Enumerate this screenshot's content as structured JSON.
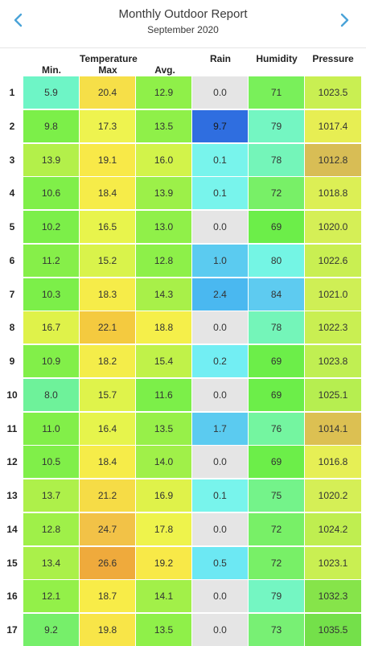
{
  "header": {
    "title": "Monthly Outdoor Report",
    "subtitle": "September 2020",
    "prev_icon": "chevron-left-icon",
    "next_icon": "chevron-right-icon",
    "accent_color": "#4aa3d8"
  },
  "columns": {
    "temperature_group": "Temperature",
    "min": "Min.",
    "max": "Max",
    "avg": "Avg.",
    "rain": "Rain",
    "humidity": "Humidity",
    "pressure": "Pressure"
  },
  "rows": [
    {
      "day": "1",
      "min": "5.9",
      "max": "20.4",
      "avg": "12.9",
      "rain": "0.0",
      "humidity": "71",
      "pressure": "1023.5",
      "colors": {
        "min": "#6ef5c6",
        "max": "#f6df48",
        "avg": "#8ff049",
        "rain": "#e5e5e5",
        "humidity": "#79f05a",
        "pressure": "#c9ef52"
      }
    },
    {
      "day": "2",
      "min": "9.8",
      "max": "17.3",
      "avg": "13.5",
      "rain": "9.7",
      "humidity": "79",
      "pressure": "1017.4",
      "colors": {
        "min": "#7cef49",
        "max": "#eef34f",
        "avg": "#8ff049",
        "rain": "#2f6ee0",
        "humidity": "#74f6c2",
        "pressure": "#e7ee53"
      }
    },
    {
      "day": "3",
      "min": "13.9",
      "max": "19.1",
      "avg": "16.0",
      "rain": "0.1",
      "humidity": "78",
      "pressure": "1012.8",
      "colors": {
        "min": "#b3f04a",
        "max": "#f8e948",
        "avg": "#d2f34a",
        "rain": "#78f4ec",
        "humidity": "#74f5b9",
        "pressure": "#d8bd55"
      }
    },
    {
      "day": "4",
      "min": "10.6",
      "max": "18.4",
      "avg": "13.9",
      "rain": "0.1",
      "humidity": "72",
      "pressure": "1018.8",
      "colors": {
        "min": "#80ef49",
        "max": "#f6ec49",
        "avg": "#9cf049",
        "rain": "#78f4ec",
        "humidity": "#78f067",
        "pressure": "#dcef55"
      }
    },
    {
      "day": "5",
      "min": "10.2",
      "max": "16.5",
      "avg": "13.0",
      "rain": "0.0",
      "humidity": "69",
      "pressure": "1020.0",
      "colors": {
        "min": "#7cef49",
        "max": "#e8f44c",
        "avg": "#90f049",
        "rain": "#e5e5e5",
        "humidity": "#6cee49",
        "pressure": "#d5ef56"
      }
    },
    {
      "day": "6",
      "min": "11.2",
      "max": "15.2",
      "avg": "12.8",
      "rain": "1.0",
      "humidity": "80",
      "pressure": "1022.6",
      "colors": {
        "min": "#86ef49",
        "max": "#d9f34b",
        "avg": "#8df049",
        "rain": "#5bcbf0",
        "humidity": "#74f5e4",
        "pressure": "#c9ef52"
      }
    },
    {
      "day": "7",
      "min": "10.3",
      "max": "18.3",
      "avg": "14.3",
      "rain": "2.4",
      "humidity": "84",
      "pressure": "1021.0",
      "colors": {
        "min": "#7cef49",
        "max": "#f6ec49",
        "avg": "#a8f049",
        "rain": "#4ab8f0",
        "humidity": "#5ecbf0",
        "pressure": "#cfef55"
      }
    },
    {
      "day": "8",
      "min": "16.7",
      "max": "22.1",
      "avg": "18.8",
      "rain": "0.0",
      "humidity": "78",
      "pressure": "1022.3",
      "colors": {
        "min": "#dff24a",
        "max": "#f4ca3f",
        "avg": "#f5ef4a",
        "rain": "#e5e5e5",
        "humidity": "#74f5b9",
        "pressure": "#c9ef52"
      }
    },
    {
      "day": "9",
      "min": "10.9",
      "max": "18.2",
      "avg": "15.4",
      "rain": "0.2",
      "humidity": "69",
      "pressure": "1023.8",
      "colors": {
        "min": "#82ef49",
        "max": "#f4ed4a",
        "avg": "#c0f249",
        "rain": "#72eef3",
        "humidity": "#6cee49",
        "pressure": "#c0ef52"
      }
    },
    {
      "day": "10",
      "min": "8.0",
      "max": "15.7",
      "avg": "11.6",
      "rain": "0.0",
      "humidity": "69",
      "pressure": "1025.1",
      "colors": {
        "min": "#6ef29a",
        "max": "#dff34b",
        "avg": "#7cef49",
        "rain": "#e5e5e5",
        "humidity": "#6cee49",
        "pressure": "#b6ee50"
      }
    },
    {
      "day": "11",
      "min": "11.0",
      "max": "16.4",
      "avg": "13.5",
      "rain": "1.7",
      "humidity": "76",
      "pressure": "1014.1",
      "colors": {
        "min": "#82ef49",
        "max": "#e6f44c",
        "avg": "#97f049",
        "rain": "#5bcbf0",
        "humidity": "#74f5a0",
        "pressure": "#dcc052"
      }
    },
    {
      "day": "12",
      "min": "10.5",
      "max": "18.4",
      "avg": "14.0",
      "rain": "0.0",
      "humidity": "69",
      "pressure": "1016.8",
      "colors": {
        "min": "#80ef49",
        "max": "#f6ec49",
        "avg": "#a0f049",
        "rain": "#e5e5e5",
        "humidity": "#6cee49",
        "pressure": "#e6ef55"
      }
    },
    {
      "day": "13",
      "min": "13.7",
      "max": "21.2",
      "avg": "16.9",
      "rain": "0.1",
      "humidity": "75",
      "pressure": "1020.2",
      "colors": {
        "min": "#aef04a",
        "max": "#f6dc46",
        "avg": "#dff24a",
        "rain": "#78f4ec",
        "humidity": "#74f38a",
        "pressure": "#d5ef56"
      }
    },
    {
      "day": "14",
      "min": "12.8",
      "max": "24.7",
      "avg": "17.8",
      "rain": "0.0",
      "humidity": "72",
      "pressure": "1024.2",
      "colors": {
        "min": "#9ff049",
        "max": "#f2c247",
        "avg": "#eef34c",
        "rain": "#e5e5e5",
        "humidity": "#78f067",
        "pressure": "#bfee50"
      }
    },
    {
      "day": "15",
      "min": "13.4",
      "max": "26.6",
      "avg": "19.2",
      "rain": "0.5",
      "humidity": "72",
      "pressure": "1023.1",
      "colors": {
        "min": "#aaf04a",
        "max": "#efaa3c",
        "avg": "#f8e948",
        "rain": "#6ce8f3",
        "humidity": "#78f067",
        "pressure": "#c9ef52"
      }
    },
    {
      "day": "16",
      "min": "12.1",
      "max": "18.7",
      "avg": "14.1",
      "rain": "0.0",
      "humidity": "79",
      "pressure": "1032.3",
      "colors": {
        "min": "#93f049",
        "max": "#f8ec48",
        "avg": "#a2f049",
        "rain": "#e5e5e5",
        "humidity": "#74f6c2",
        "pressure": "#86e44a"
      }
    },
    {
      "day": "17",
      "min": "9.2",
      "max": "19.8",
      "avg": "13.5",
      "rain": "0.0",
      "humidity": "73",
      "pressure": "1035.5",
      "colors": {
        "min": "#76ef6a",
        "max": "#f8e548",
        "avg": "#8ff049",
        "rain": "#e5e5e5",
        "humidity": "#78f074",
        "pressure": "#74e04a"
      }
    }
  ]
}
